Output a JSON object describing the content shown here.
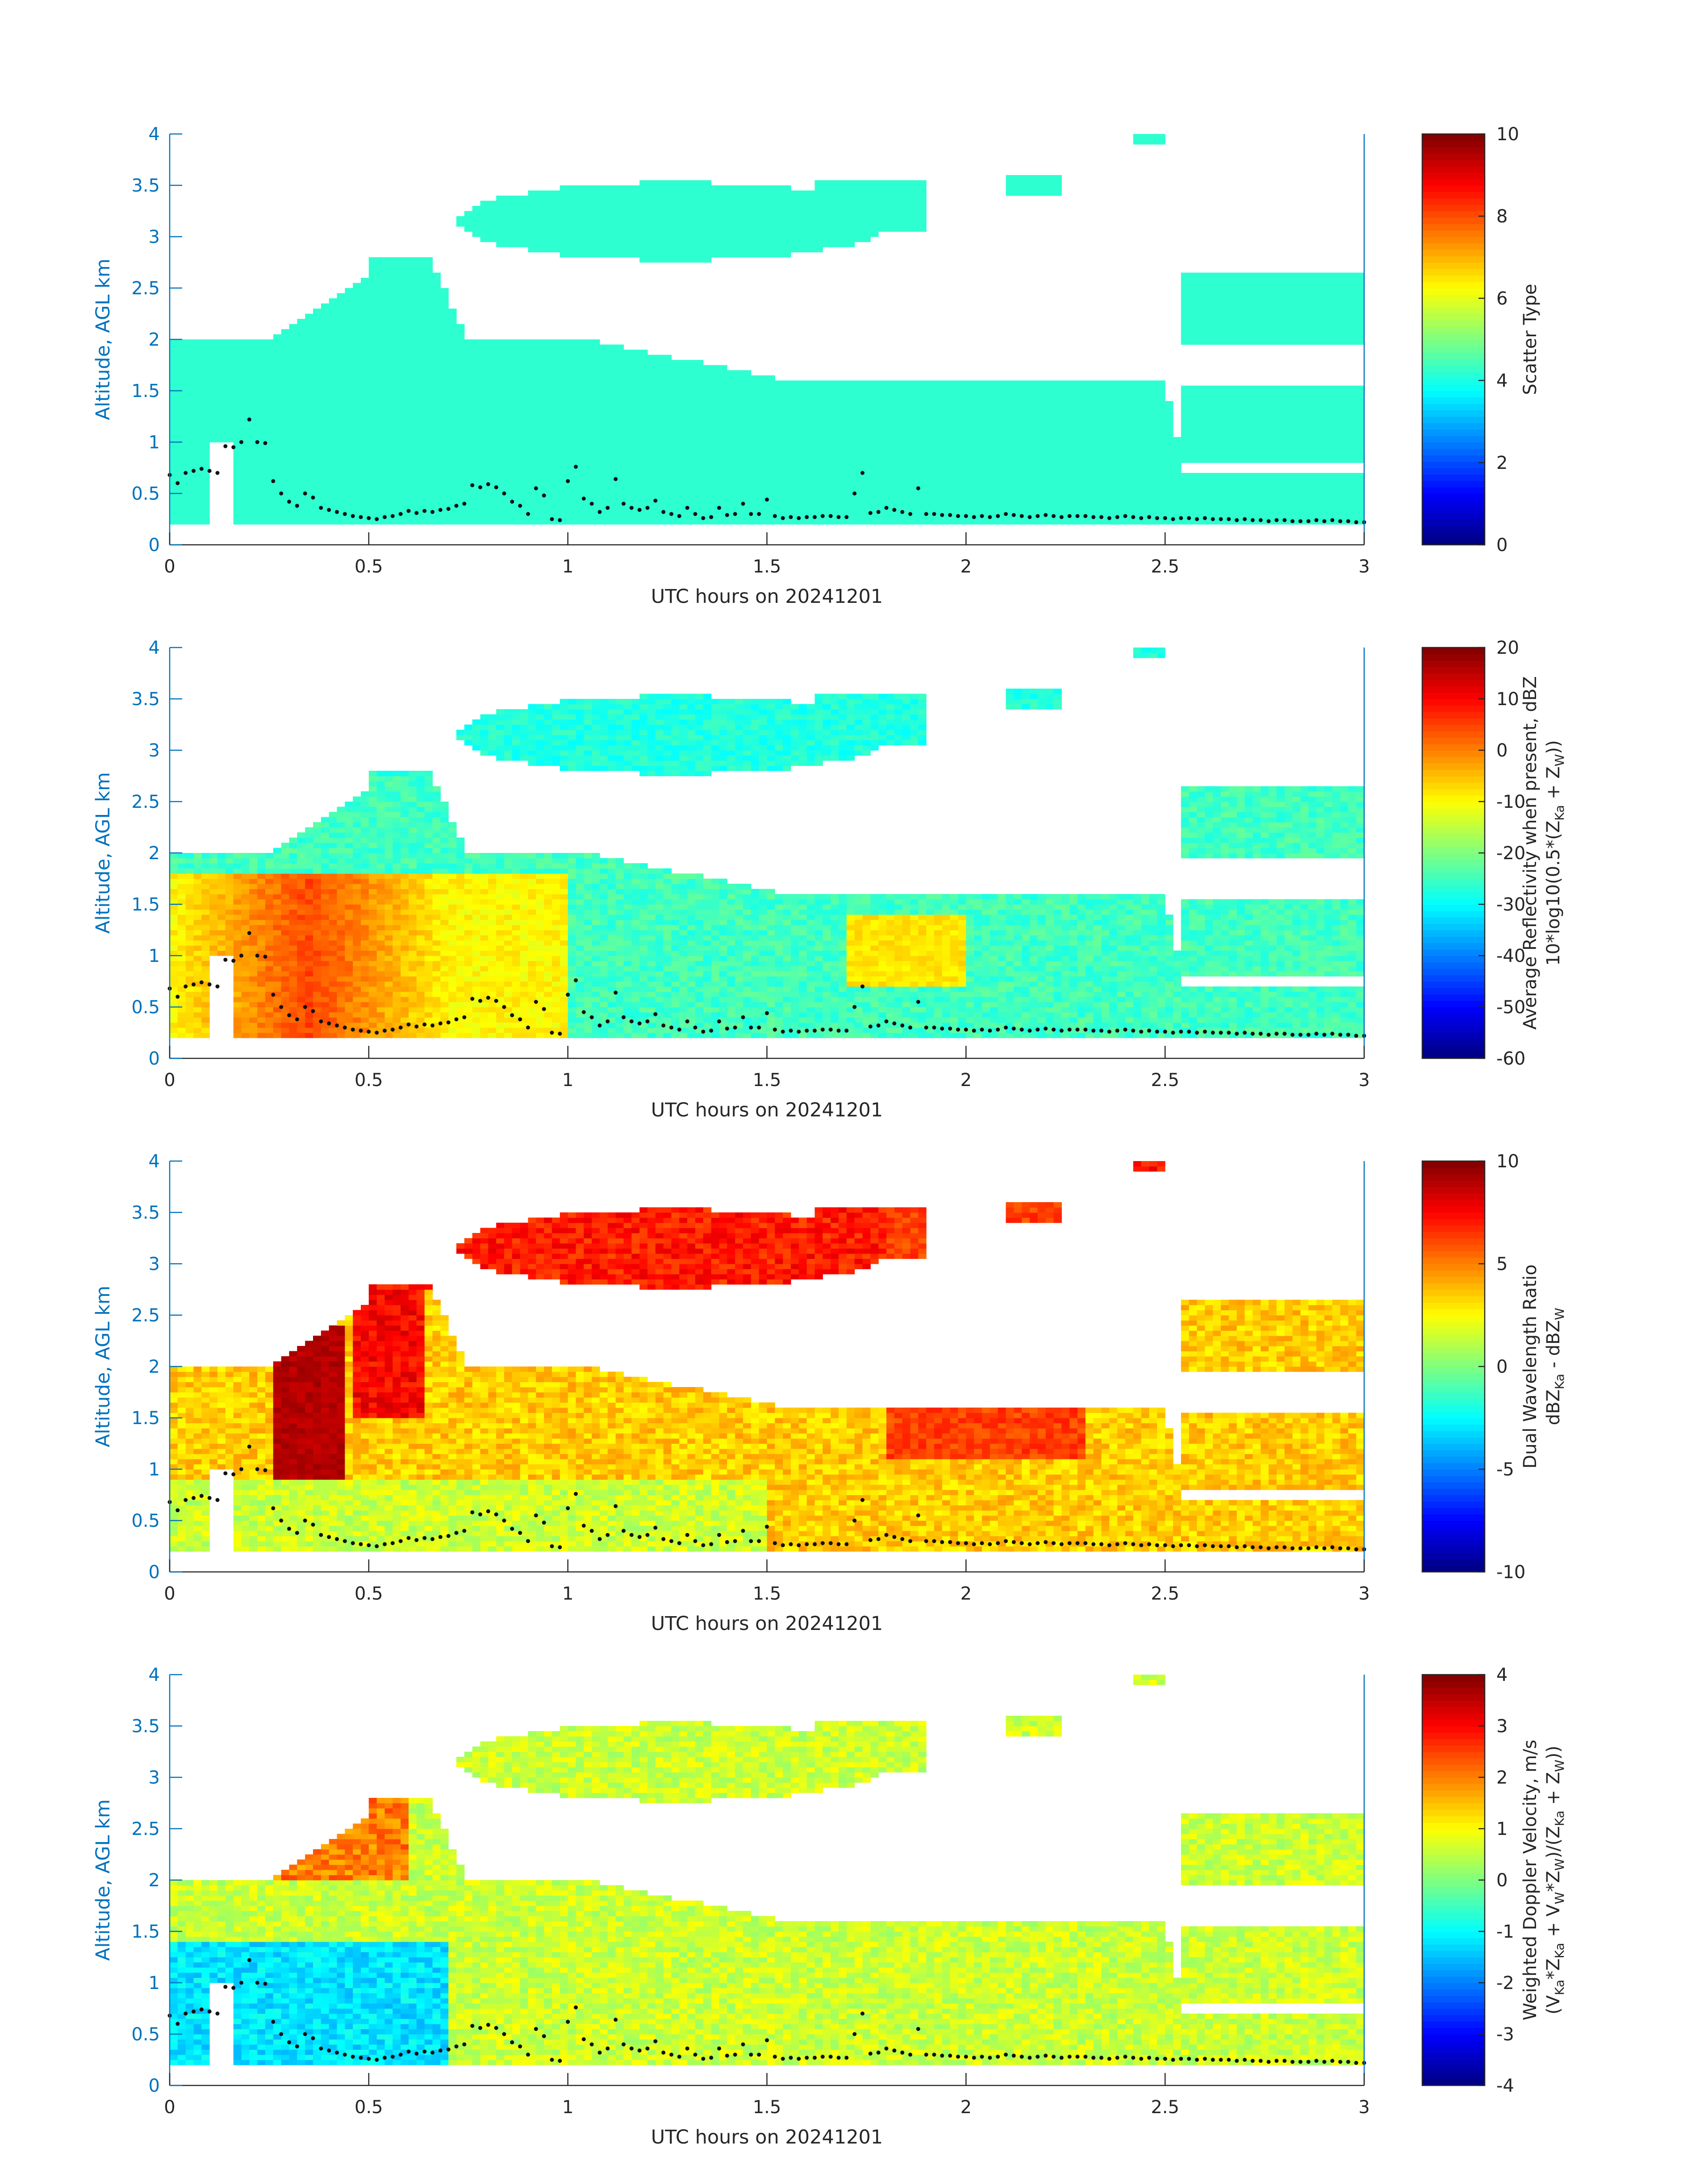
{
  "colors": {
    "axis_blue": "#0072BD",
    "tick_black": "#262626",
    "background": "#ffffff",
    "marker": "#111111"
  },
  "chart_data": [
    {
      "type": "heatmap",
      "name": "scatter-type",
      "xlabel": "UTC hours on 20241201",
      "ylabel": "Altitude, AGL km",
      "xlim": [
        0,
        3
      ],
      "ylim": [
        0,
        4
      ],
      "xticks": [
        0,
        0.5,
        1,
        1.5,
        2,
        2.5,
        3
      ],
      "xtick_labels": [
        "0",
        "0.5",
        "1",
        "1.5",
        "2",
        "2.5",
        "3"
      ],
      "yticks": [
        0,
        0.5,
        1,
        1.5,
        2,
        2.5,
        3,
        3.5,
        4
      ],
      "ytick_labels": [
        "0",
        "0.5",
        "1",
        "1.5",
        "2",
        "2.5",
        "3",
        "3.5",
        "4"
      ],
      "colorbar": {
        "label_lines": [
          "Scatter Type"
        ],
        "range": [
          0,
          10
        ],
        "ticks": [
          0,
          2,
          4,
          6,
          8,
          10
        ],
        "tick_labels": [
          "0",
          "2",
          "4",
          "6",
          "8",
          "10"
        ]
      },
      "field": {
        "kind": "categorical",
        "value": 4.2
      }
    },
    {
      "type": "heatmap",
      "name": "reflectivity",
      "xlabel": "UTC hours on 20241201",
      "ylabel": "Altitude, AGL km",
      "xlim": [
        0,
        3
      ],
      "ylim": [
        0,
        4
      ],
      "xticks": [
        0,
        0.5,
        1,
        1.5,
        2,
        2.5,
        3
      ],
      "xtick_labels": [
        "0",
        "0.5",
        "1",
        "1.5",
        "2",
        "2.5",
        "3"
      ],
      "yticks": [
        0,
        0.5,
        1,
        1.5,
        2,
        2.5,
        3,
        3.5,
        4
      ],
      "ytick_labels": [
        "0",
        "0.5",
        "1",
        "1.5",
        "2",
        "2.5",
        "3",
        "3.5",
        "4"
      ],
      "colorbar": {
        "label_lines": [
          "Average Reflectivity when present, dBZ",
          "10*log10(0.5*(Z",
          "Ka",
          " + Z",
          "W",
          "))"
        ],
        "range": [
          -60,
          20
        ],
        "ticks": [
          -60,
          -50,
          -40,
          -30,
          -20,
          -10,
          0,
          10,
          20
        ],
        "tick_labels": [
          "-60",
          "-50",
          "-40",
          "-30",
          "-20",
          "-10",
          "0",
          "10",
          "20"
        ]
      },
      "field": {
        "kind": "reflectivity"
      }
    },
    {
      "type": "heatmap",
      "name": "dual-wavelength-ratio",
      "xlabel": "UTC hours on 20241201",
      "ylabel": "Altitude, AGL km",
      "xlim": [
        0,
        3
      ],
      "ylim": [
        0,
        4
      ],
      "xticks": [
        0,
        0.5,
        1,
        1.5,
        2,
        2.5,
        3
      ],
      "xtick_labels": [
        "0",
        "0.5",
        "1",
        "1.5",
        "2",
        "2.5",
        "3"
      ],
      "yticks": [
        0,
        0.5,
        1,
        1.5,
        2,
        2.5,
        3,
        3.5,
        4
      ],
      "ytick_labels": [
        "0",
        "0.5",
        "1",
        "1.5",
        "2",
        "2.5",
        "3",
        "3.5",
        "4"
      ],
      "colorbar": {
        "label_lines": [
          "Dual Wavelength Ratio",
          "dBZ",
          "Ka",
          " - dBZ",
          "W"
        ],
        "range": [
          -10,
          10
        ],
        "ticks": [
          -10,
          -5,
          0,
          5,
          10
        ],
        "tick_labels": [
          "-10",
          "-5",
          "0",
          "5",
          "10"
        ]
      },
      "field": {
        "kind": "dwr"
      }
    },
    {
      "type": "heatmap",
      "name": "doppler-velocity",
      "xlabel": "UTC hours on 20241201",
      "ylabel": "Altitude, AGL km",
      "xlim": [
        0,
        3
      ],
      "ylim": [
        0,
        4
      ],
      "xticks": [
        0,
        0.5,
        1,
        1.5,
        2,
        2.5,
        3
      ],
      "xtick_labels": [
        "0",
        "0.5",
        "1",
        "1.5",
        "2",
        "2.5",
        "3"
      ],
      "yticks": [
        0,
        0.5,
        1,
        1.5,
        2,
        2.5,
        3,
        3.5,
        4
      ],
      "ytick_labels": [
        "0",
        "0.5",
        "1",
        "1.5",
        "2",
        "2.5",
        "3",
        "3.5",
        "4"
      ],
      "colorbar": {
        "label_lines": [
          "Weighted Doppler Velocity, m/s",
          "(V",
          "Ka",
          "*Z",
          "Ka",
          " + V",
          "W",
          "*Z",
          "W",
          ")/(Z",
          "Ka",
          " + Z",
          "W",
          "))"
        ],
        "range": [
          -4,
          4
        ],
        "ticks": [
          -4,
          -3,
          -2,
          -1,
          0,
          1,
          2,
          3,
          4
        ],
        "tick_labels": [
          "-4",
          "-3",
          "-2",
          "-1",
          "0",
          "1",
          "2",
          "3",
          "4"
        ]
      },
      "field": {
        "kind": "velocity"
      }
    }
  ],
  "cloud_base_markers": {
    "x": [
      0.0,
      0.02,
      0.04,
      0.06,
      0.08,
      0.1,
      0.12,
      0.14,
      0.16,
      0.18,
      0.2,
      0.22,
      0.24,
      0.26,
      0.28,
      0.3,
      0.32,
      0.34,
      0.36,
      0.38,
      0.4,
      0.42,
      0.44,
      0.46,
      0.48,
      0.5,
      0.52,
      0.54,
      0.56,
      0.58,
      0.6,
      0.62,
      0.64,
      0.66,
      0.68,
      0.7,
      0.72,
      0.74,
      0.76,
      0.78,
      0.8,
      0.82,
      0.84,
      0.86,
      0.88,
      0.9,
      0.92,
      0.94,
      0.96,
      0.98,
      1.0,
      1.02,
      1.04,
      1.06,
      1.08,
      1.1,
      1.12,
      1.14,
      1.16,
      1.18,
      1.2,
      1.22,
      1.24,
      1.26,
      1.28,
      1.3,
      1.32,
      1.34,
      1.36,
      1.38,
      1.4,
      1.42,
      1.44,
      1.46,
      1.48,
      1.5,
      1.52,
      1.54,
      1.56,
      1.58,
      1.6,
      1.62,
      1.64,
      1.66,
      1.68,
      1.7,
      1.72,
      1.74,
      1.76,
      1.78,
      1.8,
      1.82,
      1.84,
      1.86,
      1.88,
      1.9,
      1.92,
      1.94,
      1.96,
      1.98,
      2.0,
      2.02,
      2.04,
      2.06,
      2.08,
      2.1,
      2.12,
      2.14,
      2.16,
      2.18,
      2.2,
      2.22,
      2.24,
      2.26,
      2.28,
      2.3,
      2.32,
      2.34,
      2.36,
      2.38,
      2.4,
      2.42,
      2.44,
      2.46,
      2.48,
      2.5,
      2.52,
      2.54,
      2.56,
      2.58,
      2.6,
      2.62,
      2.64,
      2.66,
      2.68,
      2.7,
      2.72,
      2.74,
      2.76,
      2.78,
      2.8,
      2.82,
      2.84,
      2.86,
      2.88,
      2.9,
      2.92,
      2.94,
      2.96,
      2.98,
      3.0
    ],
    "y": [
      0.68,
      0.6,
      0.7,
      0.72,
      0.74,
      0.72,
      0.7,
      0.96,
      0.95,
      1.0,
      1.22,
      1.0,
      0.99,
      0.62,
      0.5,
      0.42,
      0.38,
      0.5,
      0.46,
      0.36,
      0.34,
      0.32,
      0.3,
      0.28,
      0.27,
      0.26,
      0.25,
      0.27,
      0.28,
      0.3,
      0.33,
      0.31,
      0.33,
      0.32,
      0.34,
      0.35,
      0.38,
      0.4,
      0.58,
      0.56,
      0.59,
      0.56,
      0.5,
      0.42,
      0.38,
      0.3,
      0.55,
      0.48,
      0.25,
      0.24,
      0.62,
      0.76,
      0.45,
      0.4,
      0.32,
      0.36,
      0.64,
      0.4,
      0.36,
      0.34,
      0.36,
      0.43,
      0.32,
      0.3,
      0.28,
      0.36,
      0.3,
      0.26,
      0.27,
      0.36,
      0.29,
      0.3,
      0.4,
      0.3,
      0.3,
      0.44,
      0.28,
      0.26,
      0.27,
      0.26,
      0.27,
      0.27,
      0.28,
      0.28,
      0.27,
      0.27,
      0.5,
      0.7,
      0.31,
      0.32,
      0.36,
      0.34,
      0.32,
      0.3,
      0.55,
      0.3,
      0.3,
      0.29,
      0.29,
      0.28,
      0.28,
      0.27,
      0.28,
      0.27,
      0.28,
      0.3,
      0.29,
      0.28,
      0.27,
      0.28,
      0.29,
      0.28,
      0.27,
      0.28,
      0.28,
      0.28,
      0.27,
      0.27,
      0.26,
      0.27,
      0.28,
      0.27,
      0.26,
      0.27,
      0.26,
      0.26,
      0.25,
      0.26,
      0.26,
      0.25,
      0.26,
      0.25,
      0.25,
      0.25,
      0.24,
      0.25,
      0.24,
      0.24,
      0.23,
      0.24,
      0.24,
      0.23,
      0.23,
      0.23,
      0.24,
      0.23,
      0.24,
      0.23,
      0.23,
      0.22,
      0.22
    ]
  }
}
